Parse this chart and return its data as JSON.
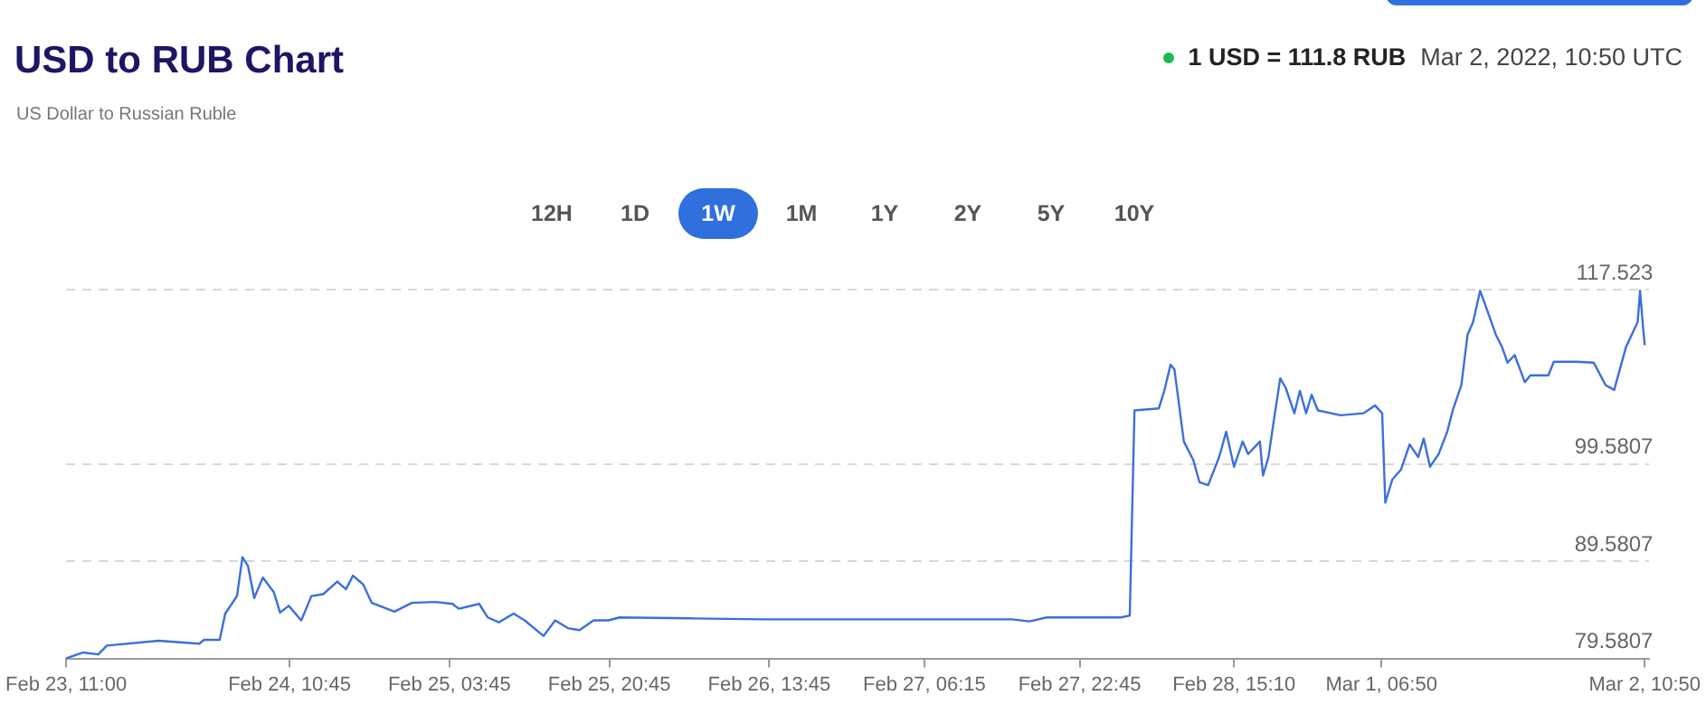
{
  "chart_data": {
    "type": "line",
    "title": "USD to RUB Chart",
    "subtitle": "US Dollar to Russian Ruble",
    "annotations": [
      "1 USD = 111.8 RUB",
      "Mar 2, 2022, 10:50 UTC",
      "12H",
      "1D",
      "1W",
      "1M",
      "1Y",
      "2Y",
      "5Y",
      "10Y"
    ],
    "x": [
      "2022-02-23T11:00",
      "2022-02-23T12:50",
      "2022-02-23T14:25",
      "2022-02-23T15:20",
      "2022-02-23T20:50",
      "2022-02-24T01:10",
      "2022-02-24T01:40",
      "2022-02-24T03:20",
      "2022-02-24T03:55",
      "2022-02-24T05:10",
      "2022-02-24T05:45",
      "2022-02-24T06:20",
      "2022-02-24T07:00",
      "2022-02-24T07:55",
      "2022-02-24T09:05",
      "2022-02-24T09:45",
      "2022-02-24T10:40",
      "2022-02-24T12:00",
      "2022-02-24T13:05",
      "2022-02-24T14:20",
      "2022-02-24T15:50",
      "2022-02-24T16:45",
      "2022-02-24T17:30",
      "2022-02-24T18:35",
      "2022-02-24T19:30",
      "2022-02-24T21:55",
      "2022-02-24T23:45",
      "2022-02-25T02:15",
      "2022-02-25T04:05",
      "2022-02-25T04:45",
      "2022-02-25T06:55",
      "2022-02-25T07:50",
      "2022-02-25T09:00",
      "2022-02-25T10:35",
      "2022-02-25T11:45",
      "2022-02-25T13:45",
      "2022-02-25T15:00",
      "2022-02-25T16:20",
      "2022-02-25T17:35",
      "2022-02-25T19:05",
      "2022-02-25T20:40",
      "2022-02-25T21:50",
      "2022-02-26T05:50",
      "2022-02-26T13:15",
      "2022-02-27T00:50",
      "2022-02-27T15:35",
      "2022-02-27T17:25",
      "2022-02-27T19:15",
      "2022-02-28T03:10",
      "2022-02-28T04:05",
      "2022-02-28T04:35",
      "2022-02-28T07:10",
      "2022-02-28T07:45",
      "2022-02-28T08:25",
      "2022-02-28T08:50",
      "2022-02-28T09:50",
      "2022-02-28T10:50",
      "2022-02-28T11:30",
      "2022-02-28T12:25",
      "2022-02-28T13:35",
      "2022-02-28T14:20",
      "2022-02-28T15:10",
      "2022-02-28T16:05",
      "2022-02-28T16:40",
      "2022-02-28T17:55",
      "2022-02-28T18:15",
      "2022-02-28T18:50",
      "2022-02-28T19:25",
      "2022-02-28T20:05",
      "2022-02-28T20:40",
      "2022-02-28T21:35",
      "2022-02-28T22:10",
      "2022-02-28T22:50",
      "2022-02-28T23:25",
      "2022-03-01T00:05",
      "2022-03-01T02:30",
      "2022-03-01T04:55",
      "2022-03-01T06:10",
      "2022-03-01T06:55",
      "2022-03-01T07:15",
      "2022-03-01T08:00",
      "2022-03-01T08:55",
      "2022-03-01T09:50",
      "2022-03-01T10:45",
      "2022-03-01T11:20",
      "2022-03-01T12:00",
      "2022-03-01T12:55",
      "2022-03-01T13:50",
      "2022-03-01T14:25",
      "2022-03-01T15:20",
      "2022-03-01T16:00",
      "2022-03-01T16:35",
      "2022-03-01T17:20",
      "2022-03-01T18:05",
      "2022-03-01T19:00",
      "2022-03-01T19:40",
      "2022-03-01T20:15",
      "2022-03-01T21:00",
      "2022-03-01T22:05",
      "2022-03-01T22:40",
      "2022-03-02T00:35",
      "2022-03-02T01:10",
      "2022-03-02T03:35",
      "2022-03-02T05:25",
      "2022-03-02T06:40",
      "2022-03-02T07:35",
      "2022-03-02T08:50",
      "2022-03-02T10:05",
      "2022-03-02T10:20",
      "2022-03-02T10:40",
      "2022-03-02T10:50"
    ],
    "series": [
      {
        "color": "#3b6fdc",
        "values": [
          79.6,
          80.2,
          80.0,
          80.9,
          81.4,
          81.1,
          81.5,
          81.5,
          84.2,
          86.0,
          90.0,
          89.1,
          85.8,
          87.9,
          86.4,
          84.3,
          85.0,
          83.5,
          86.0,
          86.2,
          87.5,
          86.7,
          88.1,
          87.2,
          85.3,
          84.4,
          85.3,
          85.4,
          85.2,
          84.7,
          85.2,
          83.8,
          83.3,
          84.2,
          83.5,
          81.9,
          83.5,
          82.7,
          82.5,
          83.5,
          83.5,
          83.8,
          83.7,
          83.6,
          83.6,
          83.6,
          83.4,
          83.8,
          83.8,
          84.0,
          105.1,
          105.3,
          107.1,
          109.8,
          109.3,
          101.9,
          100.0,
          97.7,
          97.4,
          100.3,
          102.9,
          99.3,
          101.9,
          100.6,
          101.9,
          98.4,
          100.3,
          104.2,
          108.4,
          107.4,
          104.8,
          107.1,
          104.8,
          106.7,
          105.1,
          104.6,
          104.8,
          105.6,
          104.8,
          95.6,
          98.0,
          99.0,
          101.6,
          100.3,
          102.2,
          99.3,
          100.6,
          102.9,
          105.1,
          107.7,
          112.9,
          114.2,
          117.4,
          115.4,
          112.9,
          111.6,
          110.0,
          110.8,
          108.0,
          108.7,
          108.7,
          110.1,
          110.1,
          110.0,
          107.7,
          107.2,
          111.6,
          114.2,
          117.4,
          113.5,
          111.8
        ]
      }
    ],
    "xlim": [
      "2022-02-23T11:00",
      "2022-03-02T11:20"
    ],
    "xticks": [
      {
        "value": "2022-02-23T11:00",
        "label": "Feb 23, 11:00"
      },
      {
        "value": "2022-02-24T10:45",
        "label": "Feb 24, 10:45"
      },
      {
        "value": "2022-02-25T03:45",
        "label": "Feb 25, 03:45"
      },
      {
        "value": "2022-02-25T20:45",
        "label": "Feb 25, 20:45"
      },
      {
        "value": "2022-02-26T13:45",
        "label": "Feb 26, 13:45"
      },
      {
        "value": "2022-02-27T06:15",
        "label": "Feb 27, 06:15"
      },
      {
        "value": "2022-02-27T22:45",
        "label": "Feb 27, 22:45"
      },
      {
        "value": "2022-02-28T15:10",
        "label": "Feb 28, 15:10"
      },
      {
        "value": "2022-03-01T06:50",
        "label": "Mar 1, 06:50"
      },
      {
        "value": "2022-03-02T10:50",
        "label": "Mar 2, 10:50"
      }
    ],
    "ylim": [
      79.5807,
      117.523
    ],
    "yticks": [
      79.5807,
      89.5807,
      99.5807,
      117.523
    ],
    "grid": "y",
    "legend": false,
    "marker": "none",
    "line_style": "solid"
  }
}
